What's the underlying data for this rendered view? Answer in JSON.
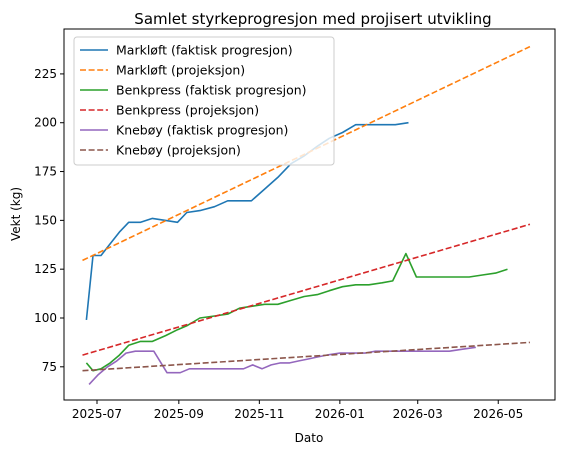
{
  "chart_data": {
    "type": "line",
    "title": "Samlet styrkeprogresjon med projisert utvikling",
    "xlabel": "Dato",
    "ylabel": "Vekt (kg)",
    "xlim": [
      "2025-06-06",
      "2026-06-13"
    ],
    "ylim": [
      58,
      248
    ],
    "x_ticks": [
      "2025-07-01",
      "2025-09-01",
      "2025-11-01",
      "2026-01-01",
      "2026-03-01",
      "2026-05-01"
    ],
    "x_tick_labels": [
      "2025-07",
      "2025-09",
      "2025-11",
      "2026-01",
      "2026-03",
      "2026-05"
    ],
    "y_ticks": [
      75,
      100,
      125,
      150,
      175,
      200,
      225
    ],
    "grid": false,
    "legend_position": "top-left",
    "series": [
      {
        "name": "Markløft (faktisk progresjon)",
        "color": "#1f77b4",
        "style": "solid",
        "points": [
          [
            "2025-06-23",
            99
          ],
          [
            "2025-06-28",
            132
          ],
          [
            "2025-07-04",
            132
          ],
          [
            "2025-07-11",
            138
          ],
          [
            "2025-07-18",
            144
          ],
          [
            "2025-07-25",
            149
          ],
          [
            "2025-08-03",
            149
          ],
          [
            "2025-08-12",
            151
          ],
          [
            "2025-08-22",
            150
          ],
          [
            "2025-08-31",
            149
          ],
          [
            "2025-09-07",
            154
          ],
          [
            "2025-09-17",
            155
          ],
          [
            "2025-09-28",
            157
          ],
          [
            "2025-10-08",
            160
          ],
          [
            "2025-10-17",
            160
          ],
          [
            "2025-10-26",
            160
          ],
          [
            "2025-11-05",
            166
          ],
          [
            "2025-11-15",
            172
          ],
          [
            "2025-11-25",
            179
          ],
          [
            "2025-12-05",
            183
          ],
          [
            "2025-12-15",
            188
          ],
          [
            "2025-12-24",
            192
          ],
          [
            "2026-01-03",
            195
          ],
          [
            "2026-01-13",
            199
          ],
          [
            "2026-01-23",
            199
          ],
          [
            "2026-02-02",
            199
          ],
          [
            "2026-02-12",
            199
          ],
          [
            "2026-02-22",
            200
          ]
        ]
      },
      {
        "name": "Markløft (projeksjon)",
        "color": "#ff7f0e",
        "style": "dashed",
        "points": [
          [
            "2025-06-20",
            129.5
          ],
          [
            "2026-05-25",
            239
          ]
        ]
      },
      {
        "name": "Benkpress (faktisk progresjon)",
        "color": "#2ca02c",
        "style": "solid",
        "points": [
          [
            "2025-06-23",
            77
          ],
          [
            "2025-06-28",
            73
          ],
          [
            "2025-07-04",
            74
          ],
          [
            "2025-07-11",
            77
          ],
          [
            "2025-07-18",
            81
          ],
          [
            "2025-07-25",
            86
          ],
          [
            "2025-08-03",
            88
          ],
          [
            "2025-08-12",
            88
          ],
          [
            "2025-08-22",
            91
          ],
          [
            "2025-08-31",
            94
          ],
          [
            "2025-09-07",
            96
          ],
          [
            "2025-09-17",
            100
          ],
          [
            "2025-09-28",
            101
          ],
          [
            "2025-10-08",
            102
          ],
          [
            "2025-10-17",
            105
          ],
          [
            "2025-10-26",
            106
          ],
          [
            "2025-11-05",
            107
          ],
          [
            "2025-11-15",
            107
          ],
          [
            "2025-11-25",
            109
          ],
          [
            "2025-12-05",
            111
          ],
          [
            "2025-12-15",
            112
          ],
          [
            "2025-12-24",
            114
          ],
          [
            "2026-01-03",
            116
          ],
          [
            "2026-01-13",
            117
          ],
          [
            "2026-01-23",
            117
          ],
          [
            "2026-02-02",
            118
          ],
          [
            "2026-02-10",
            119
          ],
          [
            "2026-02-20",
            133
          ],
          [
            "2026-02-28",
            121
          ],
          [
            "2026-03-10",
            121
          ],
          [
            "2026-03-20",
            121
          ],
          [
            "2026-03-30",
            121
          ],
          [
            "2026-04-09",
            121
          ],
          [
            "2026-04-19",
            122
          ],
          [
            "2026-04-29",
            123
          ],
          [
            "2026-05-08",
            125
          ]
        ]
      },
      {
        "name": "Benkpress (projeksjon)",
        "color": "#d62728",
        "style": "dashed",
        "points": [
          [
            "2025-06-20",
            81
          ],
          [
            "2026-05-25",
            148
          ]
        ]
      },
      {
        "name": "Knebøy (faktisk progresjon)",
        "color": "#9467bd",
        "style": "solid",
        "points": [
          [
            "2025-06-25",
            66
          ],
          [
            "2025-07-02",
            71
          ],
          [
            "2025-07-09",
            75
          ],
          [
            "2025-07-16",
            78
          ],
          [
            "2025-07-23",
            82
          ],
          [
            "2025-07-30",
            83
          ],
          [
            "2025-08-06",
            83
          ],
          [
            "2025-08-13",
            83
          ],
          [
            "2025-08-23",
            72
          ],
          [
            "2025-09-02",
            72
          ],
          [
            "2025-09-09",
            74
          ],
          [
            "2025-09-20",
            74
          ],
          [
            "2025-09-30",
            74
          ],
          [
            "2025-10-10",
            74
          ],
          [
            "2025-10-20",
            74
          ],
          [
            "2025-10-27",
            76
          ],
          [
            "2025-11-03",
            74
          ],
          [
            "2025-11-10",
            76
          ],
          [
            "2025-11-17",
            77
          ],
          [
            "2025-11-24",
            77
          ],
          [
            "2025-12-01",
            78
          ],
          [
            "2025-12-08",
            79
          ],
          [
            "2025-12-15",
            80
          ],
          [
            "2025-12-22",
            81
          ],
          [
            "2026-01-01",
            82
          ],
          [
            "2026-01-10",
            82
          ],
          [
            "2026-01-20",
            82
          ],
          [
            "2026-01-28",
            83
          ],
          [
            "2026-02-06",
            83
          ],
          [
            "2026-02-15",
            83
          ],
          [
            "2026-02-24",
            83
          ],
          [
            "2026-03-05",
            83
          ],
          [
            "2026-03-15",
            83
          ],
          [
            "2026-03-25",
            83
          ],
          [
            "2026-04-04",
            84
          ],
          [
            "2026-04-14",
            85
          ]
        ]
      },
      {
        "name": "Knebøy (projeksjon)",
        "color": "#8c564b",
        "style": "dashed",
        "points": [
          [
            "2025-06-20",
            73
          ],
          [
            "2026-05-25",
            87.5
          ]
        ]
      }
    ]
  }
}
